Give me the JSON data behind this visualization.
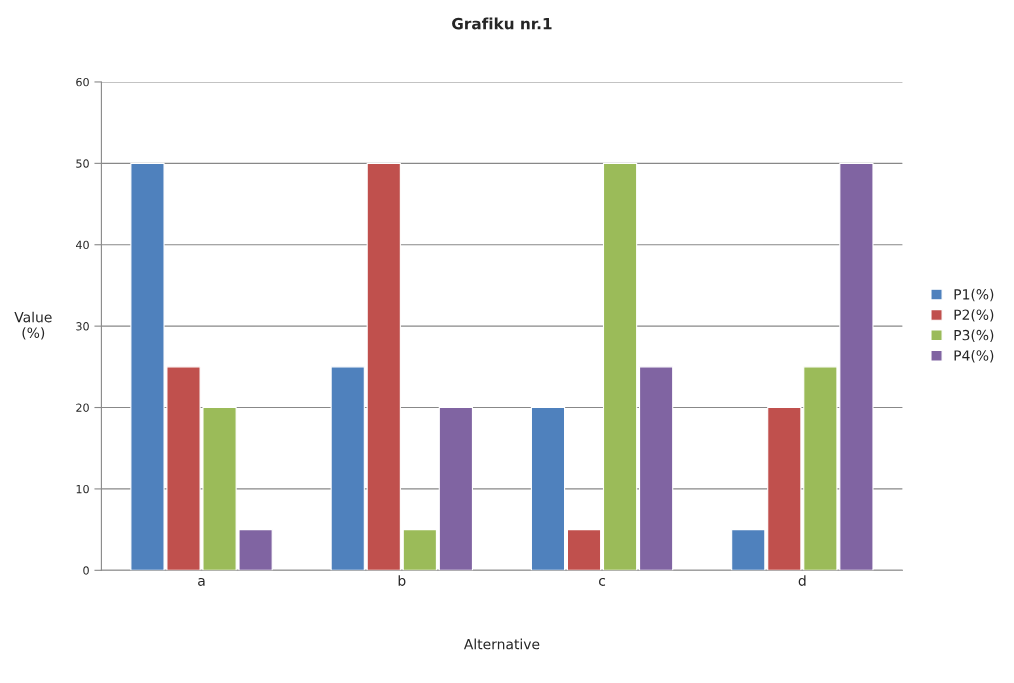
{
  "chart_data": {
    "type": "bar",
    "title": "Grafiku nr.1",
    "xlabel": "Alternative",
    "ylabel": "Value\n(%)",
    "categories": [
      "a",
      "b",
      "c",
      "d"
    ],
    "series": [
      {
        "name": "P1(%)",
        "color": "#4f81bd",
        "values": [
          50,
          25,
          20,
          5
        ]
      },
      {
        "name": "P2(%)",
        "color": "#c0504d",
        "values": [
          25,
          50,
          5,
          20
        ]
      },
      {
        "name": "P3(%)",
        "color": "#9bbb59",
        "values": [
          20,
          5,
          50,
          25
        ]
      },
      {
        "name": "P4(%)",
        "color": "#8064a2",
        "values": [
          5,
          20,
          25,
          50
        ]
      }
    ],
    "ylim": [
      0,
      60
    ],
    "yticks": [
      0,
      10,
      20,
      30,
      40,
      50,
      60
    ],
    "grid": "y",
    "legend": "right"
  }
}
